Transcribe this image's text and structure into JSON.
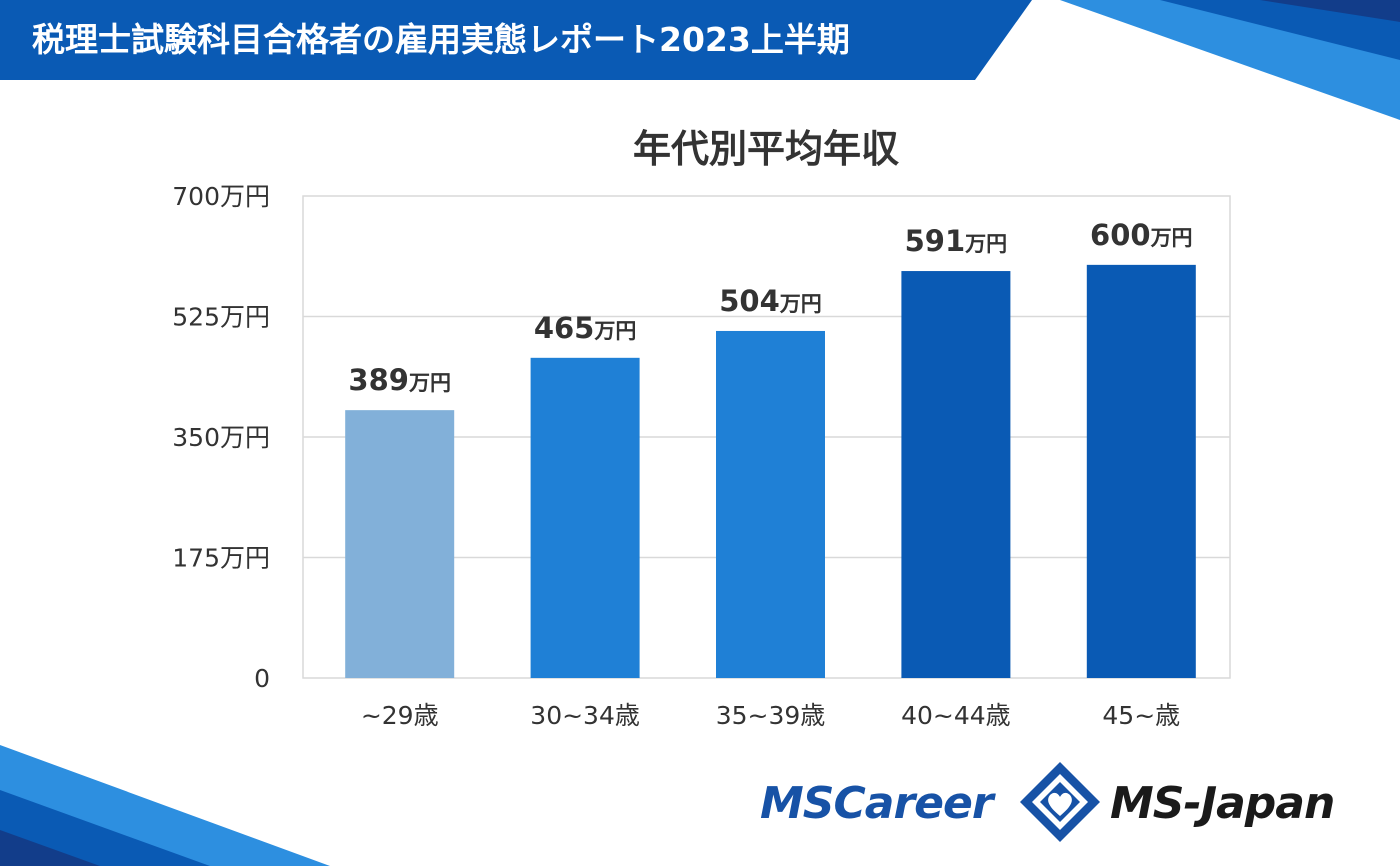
{
  "banner": {
    "title": "税理士試験科目合格者の雇用実態レポート2023上半期",
    "color": "#0a5ab4"
  },
  "logos": {
    "mscareer": "MSCareer",
    "msjapan": "MS-Japan",
    "mark_icon": "ms-japan-diamond-heart-icon"
  },
  "chart_data": {
    "type": "bar",
    "title": "年代別平均年収",
    "categories": [
      "~29歳",
      "30~34歳",
      "35~39歳",
      "40~44歳",
      "45~歳"
    ],
    "values": [
      389,
      465,
      504,
      591,
      600
    ],
    "value_labels": [
      {
        "number": "389",
        "unit": "万円"
      },
      {
        "number": "465",
        "unit": "万円"
      },
      {
        "number": "504",
        "unit": "万円"
      },
      {
        "number": "591",
        "unit": "万円"
      },
      {
        "number": "600",
        "unit": "万円"
      }
    ],
    "bar_colors": [
      "#82b0d9",
      "#1f80d6",
      "#1f80d6",
      "#0a5ab4",
      "#0a5ab4"
    ],
    "ylim": [
      0,
      700
    ],
    "yticks": [
      0,
      175,
      350,
      525,
      700
    ],
    "ytick_labels": [
      "0",
      "175万円",
      "350万円",
      "525万円",
      "700万円"
    ],
    "grid": true,
    "xlabel": "",
    "ylabel": ""
  }
}
